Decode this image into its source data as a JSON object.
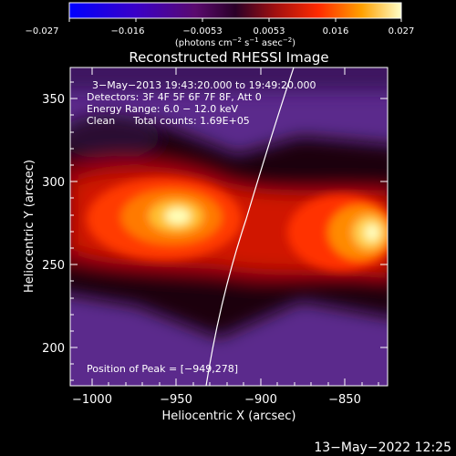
{
  "colorbar": {
    "ticks": [
      "−0.027",
      "−0.016",
      "−0.0053",
      "0.0053",
      "0.016",
      "0.027"
    ],
    "units_text": "(photons cm",
    "units_exp1": "−2",
    "units_mid": " s",
    "units_exp2": "−1",
    "units_mid2": " asec",
    "units_exp3": "−2",
    "units_close": ")"
  },
  "title": "Reconstructed RHESSI Image",
  "annotations": {
    "time_range": "3−May−2013 19:43:20.000 to 19:49:20.000",
    "detectors": "Detectors: 3F 4F 5F 6F 7F 8F, Att 0",
    "energy": "Energy Range: 6.0 − 12.0 keV",
    "method": "Clean",
    "counts": "Total counts: 1.69E+05",
    "peak": "Position of Peak = [−949,278]"
  },
  "axes": {
    "xlabel": "Heliocentric X (arcsec)",
    "ylabel": "Heliocentric Y (arcsec)",
    "xticks": [
      "−1000",
      "−950",
      "−900",
      "−850"
    ],
    "yticks": [
      "200",
      "250",
      "300",
      "350"
    ]
  },
  "footer": {
    "timestamp": "13−May−2022 12:25"
  }
}
